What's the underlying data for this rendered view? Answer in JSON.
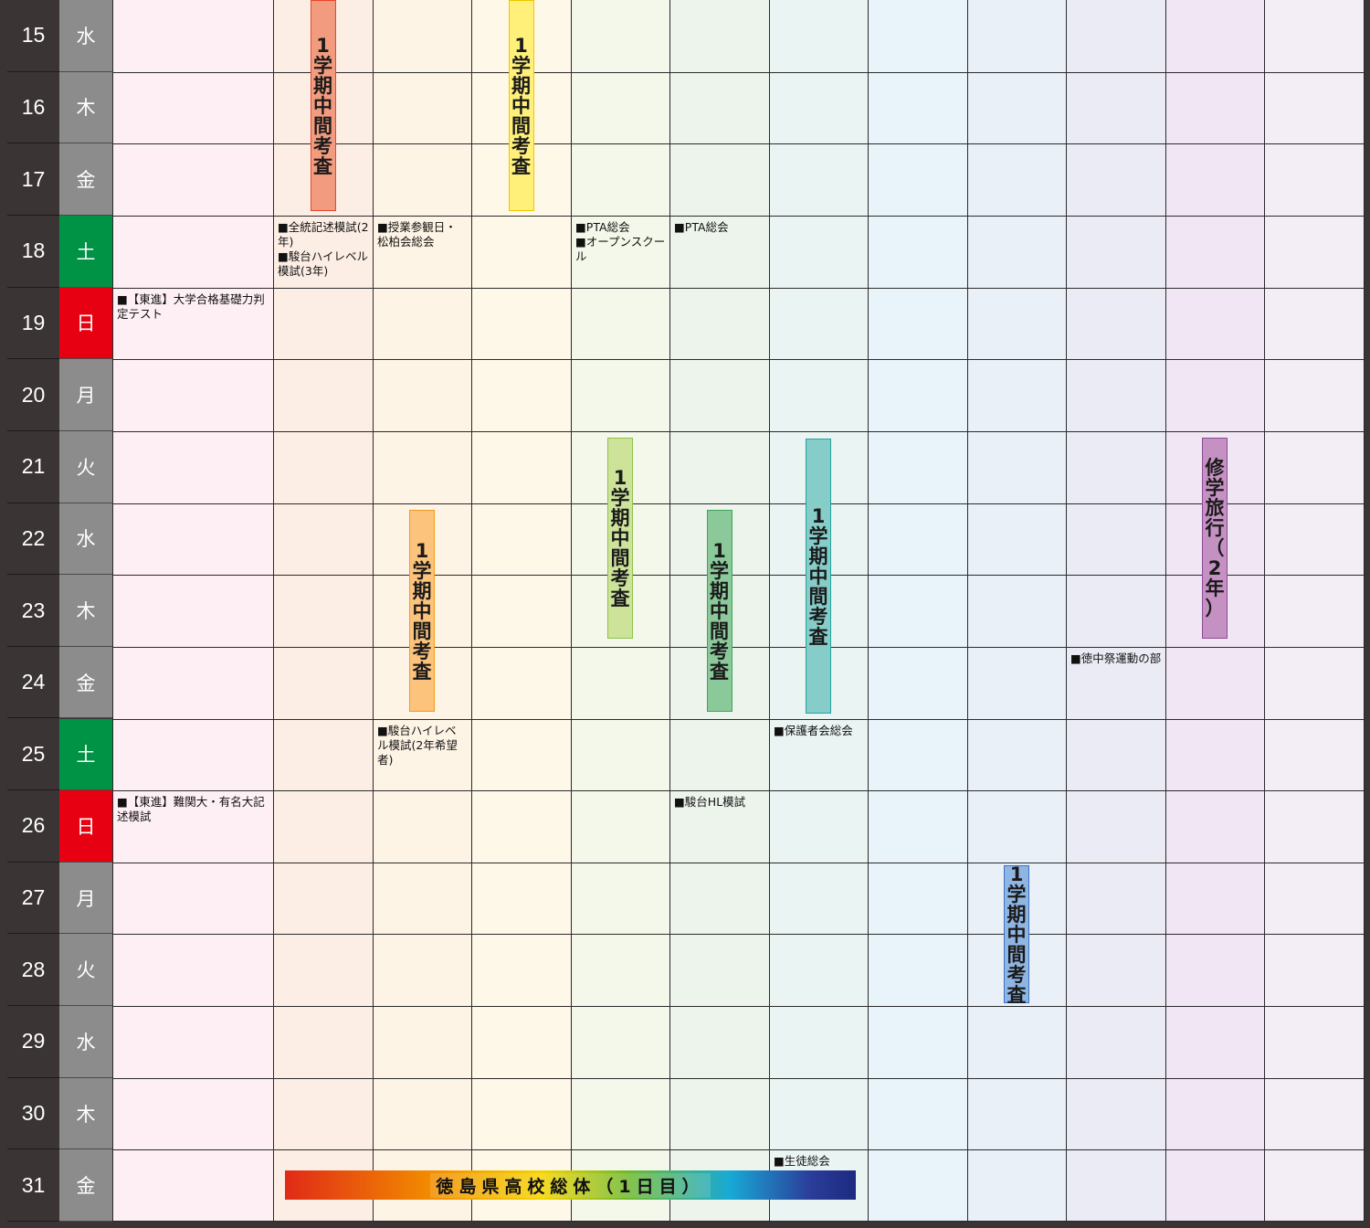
{
  "days": [
    {
      "num": "15",
      "dow": "水",
      "type": "weekday"
    },
    {
      "num": "16",
      "dow": "木",
      "type": "weekday"
    },
    {
      "num": "17",
      "dow": "金",
      "type": "weekday"
    },
    {
      "num": "18",
      "dow": "土",
      "type": "saturday"
    },
    {
      "num": "19",
      "dow": "日",
      "type": "sunday"
    },
    {
      "num": "20",
      "dow": "月",
      "type": "weekday"
    },
    {
      "num": "21",
      "dow": "火",
      "type": "weekday"
    },
    {
      "num": "22",
      "dow": "水",
      "type": "weekday"
    },
    {
      "num": "23",
      "dow": "木",
      "type": "weekday"
    },
    {
      "num": "24",
      "dow": "金",
      "type": "weekday"
    },
    {
      "num": "25",
      "dow": "土",
      "type": "saturday"
    },
    {
      "num": "26",
      "dow": "日",
      "type": "sunday"
    },
    {
      "num": "27",
      "dow": "月",
      "type": "weekday"
    },
    {
      "num": "28",
      "dow": "火",
      "type": "weekday"
    },
    {
      "num": "29",
      "dow": "水",
      "type": "weekday"
    },
    {
      "num": "30",
      "dow": "木",
      "type": "weekday"
    },
    {
      "num": "31",
      "dow": "金",
      "type": "weekday"
    }
  ],
  "colors": {
    "weekday": "#8c8c8c",
    "saturday": "#009245",
    "sunday": "#e60012",
    "column_tints": [
      "#fdeff4",
      "#fdeee5",
      "#fef4e5",
      "#fef8e8",
      "#f4f8ea",
      "#edf4ec",
      "#eaf4f3",
      "#e8f4fa",
      "#eaf0f8",
      "#ebebf5",
      "#f1e7f4",
      "#f3edf5"
    ]
  },
  "notes": [
    {
      "col": 1,
      "row": 3,
      "text": "■全統記述模試(2年)\n■駿台ハイレベル模試(3年)"
    },
    {
      "col": 2,
      "row": 3,
      "text": "■授業参観日・松柏会総会"
    },
    {
      "col": 4,
      "row": 3,
      "text": "■PTA総会\n■オープンスクール"
    },
    {
      "col": 5,
      "row": 3,
      "text": "■PTA総会"
    },
    {
      "col": 0,
      "row": 4,
      "text": "■【東進】大学合格基礎力判定テスト"
    },
    {
      "col": 9,
      "row": 9,
      "text": "■徳中祭運動の部"
    },
    {
      "col": 2,
      "row": 10,
      "text": "■駿台ハイレベル模試(2年希望者)"
    },
    {
      "col": 6,
      "row": 10,
      "text": "■保護者会総会"
    },
    {
      "col": 0,
      "row": 11,
      "text": "■【東進】難関大・有名大記述模試"
    },
    {
      "col": 5,
      "row": 11,
      "text": "■駿台HL模試"
    },
    {
      "col": 6,
      "row": 16,
      "text": "■生徒総会"
    }
  ],
  "bars": [
    {
      "col": 1,
      "chars": [
        "1",
        "学",
        "期",
        "中",
        "間",
        "考",
        "査"
      ],
      "fill": "#f39b7f",
      "stroke": "#e8452b"
    },
    {
      "col": 3,
      "chars": [
        "1",
        "学",
        "期",
        "中",
        "間",
        "考",
        "査"
      ],
      "fill": "#fff07a",
      "stroke": "#f3c300"
    },
    {
      "col": 4,
      "chars": [
        "1",
        "学",
        "期",
        "中",
        "間",
        "考",
        "査"
      ],
      "fill": "#cde39a",
      "stroke": "#8dc24a"
    },
    {
      "col": 2,
      "chars": [
        "1",
        "学",
        "期",
        "中",
        "間",
        "考",
        "査"
      ],
      "fill": "#fcc37c",
      "stroke": "#f29a1e"
    },
    {
      "col": 5,
      "chars": [
        "1",
        "学",
        "期",
        "中",
        "間",
        "考",
        "査"
      ],
      "fill": "#8cc99a",
      "stroke": "#3ea45a"
    },
    {
      "col": 6,
      "chars": [
        "1",
        "学",
        "期",
        "中",
        "間",
        "考",
        "査"
      ],
      "fill": "#86ccc8",
      "stroke": "#21a49e"
    },
    {
      "col": 10,
      "chars": [
        "修",
        "学",
        "旅",
        "行",
        "（",
        "2",
        "年",
        "）"
      ],
      "fill": "#c491c2",
      "stroke": "#8e4a98"
    },
    {
      "col": 8,
      "chars": [
        "1",
        "学",
        "期",
        "中",
        "間",
        "考",
        "査"
      ],
      "fill": "#8fb5e3",
      "stroke": "#3a73c2"
    }
  ],
  "event_bar": {
    "label": "徳島県高校総体（1日目）"
  }
}
